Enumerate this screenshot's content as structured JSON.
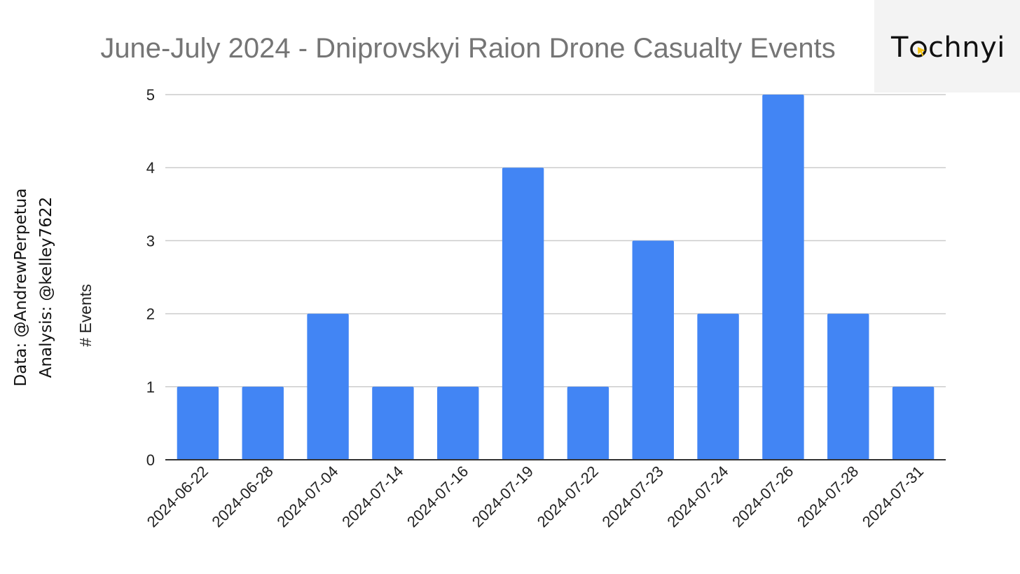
{
  "chart_data": {
    "type": "bar",
    "title": "June-July 2024 - Dniprovskyi Raion Drone Casualty Events",
    "xlabel": "",
    "ylabel": "# Events",
    "categories": [
      "2024-06-22",
      "2024-06-28",
      "2024-07-04",
      "2024-07-14",
      "2024-07-16",
      "2024-07-19",
      "2024-07-22",
      "2024-07-23",
      "2024-07-24",
      "2024-07-26",
      "2024-07-28",
      "2024-07-31"
    ],
    "values": [
      1,
      1,
      2,
      1,
      1,
      4,
      1,
      3,
      2,
      5,
      2,
      1
    ],
    "ylim": [
      0,
      5
    ],
    "yticks": [
      "0",
      "1",
      "2",
      "3",
      "4",
      "5"
    ],
    "grid": true,
    "bar_color": "#4285f4"
  },
  "logo": {
    "text_before": "T",
    "text_after": "chnyi",
    "accent_color": "#f4c20d"
  },
  "credits": {
    "data": "Data: @AndrewPerpetua",
    "analysis": "Analysis: @kelley7622"
  }
}
